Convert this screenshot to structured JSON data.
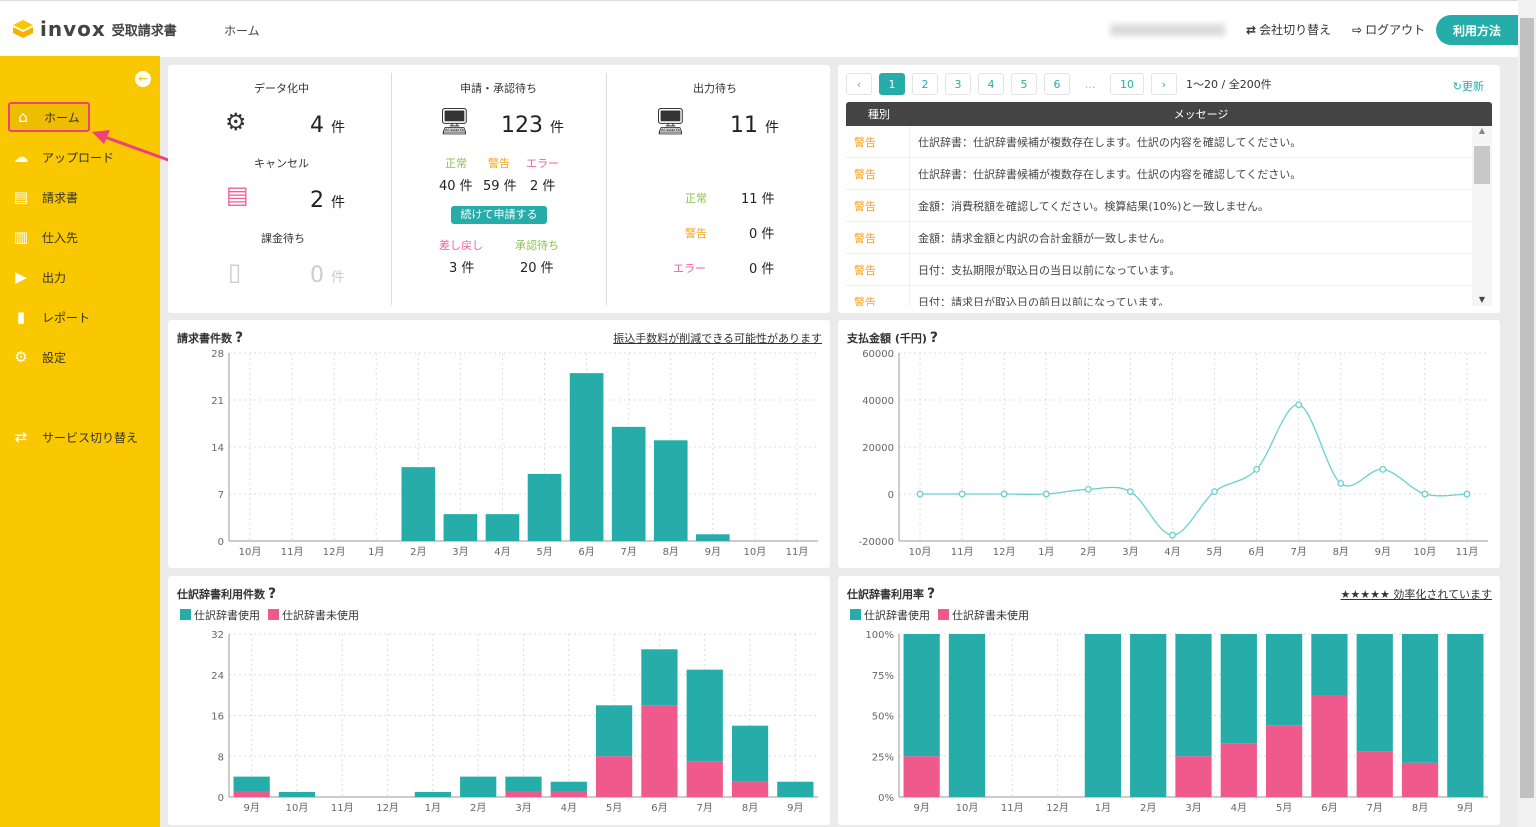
{
  "header": {
    "logo": "invox",
    "logo_sub": "受取請求書",
    "breadcrumb": "ホーム",
    "switch_company": "会社切り替え",
    "logout": "ログアウト",
    "help": "利用方法"
  },
  "sidebar": {
    "items": [
      {
        "label": "ホーム",
        "icon": "home-icon",
        "active": true
      },
      {
        "label": "アップロード",
        "icon": "cloud-upload-icon"
      },
      {
        "label": "請求書",
        "icon": "document-icon"
      },
      {
        "label": "仕入先",
        "icon": "building-icon"
      },
      {
        "label": "出力",
        "icon": "file-export-icon"
      },
      {
        "label": "レポート",
        "icon": "bar-chart-icon"
      },
      {
        "label": "設定",
        "icon": "gear-icon"
      },
      {
        "label": "サービス切り替え",
        "icon": "switch-icon"
      }
    ]
  },
  "stats": {
    "digitizing": {
      "label": "データ化中",
      "count": "4",
      "unit": "件"
    },
    "cancel": {
      "label": "キャンセル",
      "count": "2",
      "unit": "件"
    },
    "billing": {
      "label": "課金待ち",
      "count": "0",
      "unit": "件"
    },
    "approval": {
      "label": "申請・承認待ち",
      "count": "123",
      "unit": "件",
      "normal_label": "正常",
      "warn_label": "警告",
      "error_label": "エラー",
      "normal": "40 件",
      "warn": "59 件",
      "error": "2 件",
      "continue_button": "続けて申請する",
      "returned_label": "差し戻し",
      "waiting_label": "承認待ち",
      "returned": "3 件",
      "waiting": "20 件"
    },
    "output": {
      "label": "出力待ち",
      "count": "11",
      "unit": "件",
      "normal_label": "正常",
      "warn_label": "警告",
      "error_label": "エラー",
      "normal": "11 件",
      "warn": "0 件",
      "error": "0 件"
    }
  },
  "messages": {
    "pages": [
      "1",
      "2",
      "3",
      "4",
      "5",
      "6",
      "...",
      "10"
    ],
    "current_page": "1",
    "range": "1〜20 / 全200件",
    "refresh": "更新",
    "columns": [
      "種別",
      "メッセージ"
    ],
    "rows": [
      {
        "type": "警告",
        "message": "仕訳辞書：仕訳辞書候補が複数存在します。仕訳の内容を確認してください。"
      },
      {
        "type": "警告",
        "message": "仕訳辞書：仕訳辞書候補が複数存在します。仕訳の内容を確認してください。"
      },
      {
        "type": "警告",
        "message": "金額：消費税額を確認してください。検算結果(10%)と一致しません。"
      },
      {
        "type": "警告",
        "message": "金額：請求金額と内訳の合計金額が一致しません。"
      },
      {
        "type": "警告",
        "message": "日付：支払期限が取込日の当日以前になっています。"
      },
      {
        "type": "警告",
        "message": "日付：請求日が取込日の前日以前になっています。"
      }
    ]
  },
  "colors": {
    "teal": "#26ada9",
    "pink": "#f0598c",
    "line": "#6ccfcf",
    "sidebar": "#f9c800"
  },
  "chart_data": [
    {
      "type": "bar",
      "title": "請求書件数",
      "help": "?",
      "link": "振込手数料が削減できる可能性があります",
      "categories": [
        "10月",
        "11月",
        "12月",
        "1月",
        "2月",
        "3月",
        "4月",
        "5月",
        "6月",
        "7月",
        "8月",
        "9月",
        "10月",
        "11月"
      ],
      "values": [
        0,
        0,
        0,
        0,
        11,
        4,
        4,
        10,
        25,
        17,
        15,
        1,
        0,
        0
      ],
      "ylim": [
        0,
        28
      ],
      "yticks": [
        "0",
        "7",
        "14",
        "21",
        "28"
      ],
      "grid": true
    },
    {
      "type": "line",
      "title": "支払金額 (千円)",
      "help": "?",
      "categories": [
        "10月",
        "11月",
        "12月",
        "1月",
        "2月",
        "3月",
        "4月",
        "5月",
        "6月",
        "7月",
        "8月",
        "9月",
        "10月",
        "11月"
      ],
      "values": [
        0,
        0,
        0,
        0,
        2000,
        1000,
        -17500,
        1000,
        10500,
        38000,
        4500,
        10500,
        0,
        0
      ],
      "ylim": [
        -20000,
        60000
      ],
      "yticks": [
        "-20000",
        "0",
        "20000",
        "40000",
        "60000"
      ],
      "grid": true
    },
    {
      "type": "bar",
      "stacked": true,
      "title": "仕訳辞書利用件数",
      "help": "?",
      "categories": [
        "9月",
        "10月",
        "11月",
        "12月",
        "1月",
        "2月",
        "3月",
        "4月",
        "5月",
        "6月",
        "7月",
        "8月",
        "9月"
      ],
      "series": [
        {
          "name": "仕訳辞書未使用",
          "values": [
            1,
            0,
            0,
            0,
            0,
            0,
            1,
            1,
            8,
            18,
            7,
            3,
            0
          ]
        },
        {
          "name": "仕訳辞書使用",
          "values": [
            3,
            1,
            0,
            0,
            1,
            4,
            3,
            2,
            10,
            11,
            18,
            11,
            3
          ]
        }
      ],
      "ylim": [
        0,
        32
      ],
      "yticks": [
        "0",
        "8",
        "16",
        "24",
        "32"
      ],
      "grid": true,
      "legend": "top-left"
    },
    {
      "type": "bar",
      "stacked": true,
      "percent": true,
      "title": "仕訳辞書利用率",
      "help": "?",
      "link": "★★★★★ 効率化されています",
      "categories": [
        "9月",
        "10月",
        "11月",
        "12月",
        "1月",
        "2月",
        "3月",
        "4月",
        "5月",
        "6月",
        "7月",
        "8月",
        "9月"
      ],
      "series": [
        {
          "name": "仕訳辞書未使用",
          "values": [
            25,
            0,
            null,
            null,
            0,
            0,
            25,
            33,
            44,
            62,
            28,
            21,
            0
          ]
        },
        {
          "name": "仕訳辞書使用",
          "values": [
            75,
            100,
            null,
            null,
            100,
            100,
            75,
            67,
            56,
            38,
            72,
            79,
            100
          ]
        }
      ],
      "ylim": [
        0,
        100
      ],
      "yticks": [
        "0%",
        "25%",
        "50%",
        "75%",
        "100%"
      ],
      "grid": true,
      "legend": "top-left"
    }
  ]
}
